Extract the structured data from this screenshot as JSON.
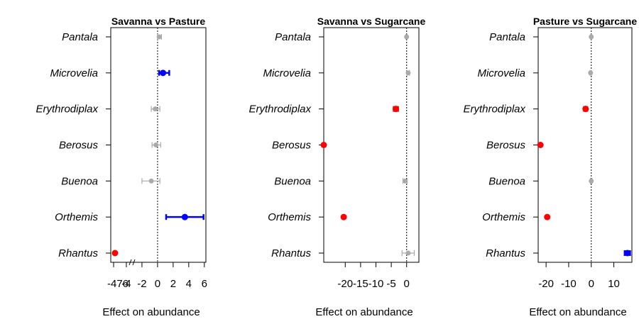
{
  "colors": {
    "nonsignificant": "#aaaaaa",
    "negative": "#ff0000",
    "positive": "#0000ff",
    "axis": "#000000"
  },
  "chart_data": [
    {
      "type": "scatter",
      "title": "Savanna vs Pasture",
      "xlabel": "Effect on abundance",
      "ylabel": "",
      "categories": [
        "Pantala",
        "Microvelia",
        "Erythrodiplax",
        "Berosus",
        "Buenoa",
        "Orthemis",
        "Rhantus"
      ],
      "xlim": [
        -6,
        6.2
      ],
      "xticks": [
        -476,
        -4,
        -2,
        0,
        2,
        4,
        6
      ],
      "axis_break": true,
      "points": [
        {
          "label": "Pantala",
          "x": 0.2,
          "lo": 0.0,
          "hi": 0.5,
          "color": "nonsignificant"
        },
        {
          "label": "Microvelia",
          "x": 0.7,
          "lo": 0.2,
          "hi": 1.5,
          "color": "positive"
        },
        {
          "label": "Erythrodiplax",
          "x": -0.3,
          "lo": -0.8,
          "hi": 0.3,
          "color": "nonsignificant"
        },
        {
          "label": "Berosus",
          "x": -0.2,
          "lo": -0.7,
          "hi": 0.4,
          "color": "nonsignificant"
        },
        {
          "label": "Buenoa",
          "x": -0.8,
          "lo": -2.0,
          "hi": 0.3,
          "color": "nonsignificant"
        },
        {
          "label": "Orthemis",
          "x": 3.5,
          "lo": 1.1,
          "hi": 5.9,
          "color": "positive"
        },
        {
          "label": "Rhantus",
          "x": -476,
          "lo": -476,
          "hi": -476,
          "color": "negative"
        }
      ]
    },
    {
      "type": "scatter",
      "title": "Savanna vs Sugarcane",
      "xlabel": "Effect on abundance",
      "ylabel": "",
      "categories": [
        "Pantala",
        "Microvelia",
        "Erythrodiplax",
        "Berosus",
        "Buenoa",
        "Orthemis",
        "Rhantus"
      ],
      "xlim": [
        -27,
        4
      ],
      "xticks": [
        -20,
        -15,
        -10,
        -5,
        0
      ],
      "axis_break": false,
      "points": [
        {
          "label": "Pantala",
          "x": 0.0,
          "lo": -0.2,
          "hi": 0.2,
          "color": "nonsignificant"
        },
        {
          "label": "Microvelia",
          "x": 0.5,
          "lo": 0.1,
          "hi": 0.9,
          "color": "nonsignificant"
        },
        {
          "label": "Erythrodiplax",
          "x": -3.5,
          "lo": -4.2,
          "hi": -2.8,
          "color": "negative"
        },
        {
          "label": "Berosus",
          "x": -27,
          "lo": -27,
          "hi": -27,
          "color": "negative"
        },
        {
          "label": "Buenoa",
          "x": -0.5,
          "lo": -1.2,
          "hi": 0.2,
          "color": "nonsignificant"
        },
        {
          "label": "Orthemis",
          "x": -20.5,
          "lo": -20.5,
          "hi": -20.5,
          "color": "negative"
        },
        {
          "label": "Rhantus",
          "x": 0.5,
          "lo": -1.5,
          "hi": 2.5,
          "color": "nonsignificant"
        }
      ]
    },
    {
      "type": "scatter",
      "title": "Pasture vs Sugarcane",
      "xlabel": "Effect on abundance",
      "ylabel": "",
      "categories": [
        "Pantala",
        "Microvelia",
        "Erythrodiplax",
        "Berosus",
        "Buenoa",
        "Orthemis",
        "Rhantus"
      ],
      "xlim": [
        -23.5,
        18
      ],
      "xticks": [
        -20,
        -10,
        0,
        10
      ],
      "axis_break": false,
      "points": [
        {
          "label": "Pantala",
          "x": 0.0,
          "lo": -0.2,
          "hi": 0.2,
          "color": "nonsignificant"
        },
        {
          "label": "Microvelia",
          "x": -0.3,
          "lo": -0.6,
          "hi": 0.1,
          "color": "nonsignificant"
        },
        {
          "label": "Erythrodiplax",
          "x": -2.5,
          "lo": -3.2,
          "hi": -1.8,
          "color": "negative"
        },
        {
          "label": "Berosus",
          "x": -22.5,
          "lo": -22.5,
          "hi": -22.5,
          "color": "negative"
        },
        {
          "label": "Buenoa",
          "x": 0.0,
          "lo": -0.4,
          "hi": 0.4,
          "color": "nonsignificant"
        },
        {
          "label": "Orthemis",
          "x": -19.5,
          "lo": -19.5,
          "hi": -19.5,
          "color": "negative"
        },
        {
          "label": "Rhantus",
          "x": 16.0,
          "lo": 14.8,
          "hi": 17.2,
          "color": "positive"
        }
      ]
    }
  ]
}
